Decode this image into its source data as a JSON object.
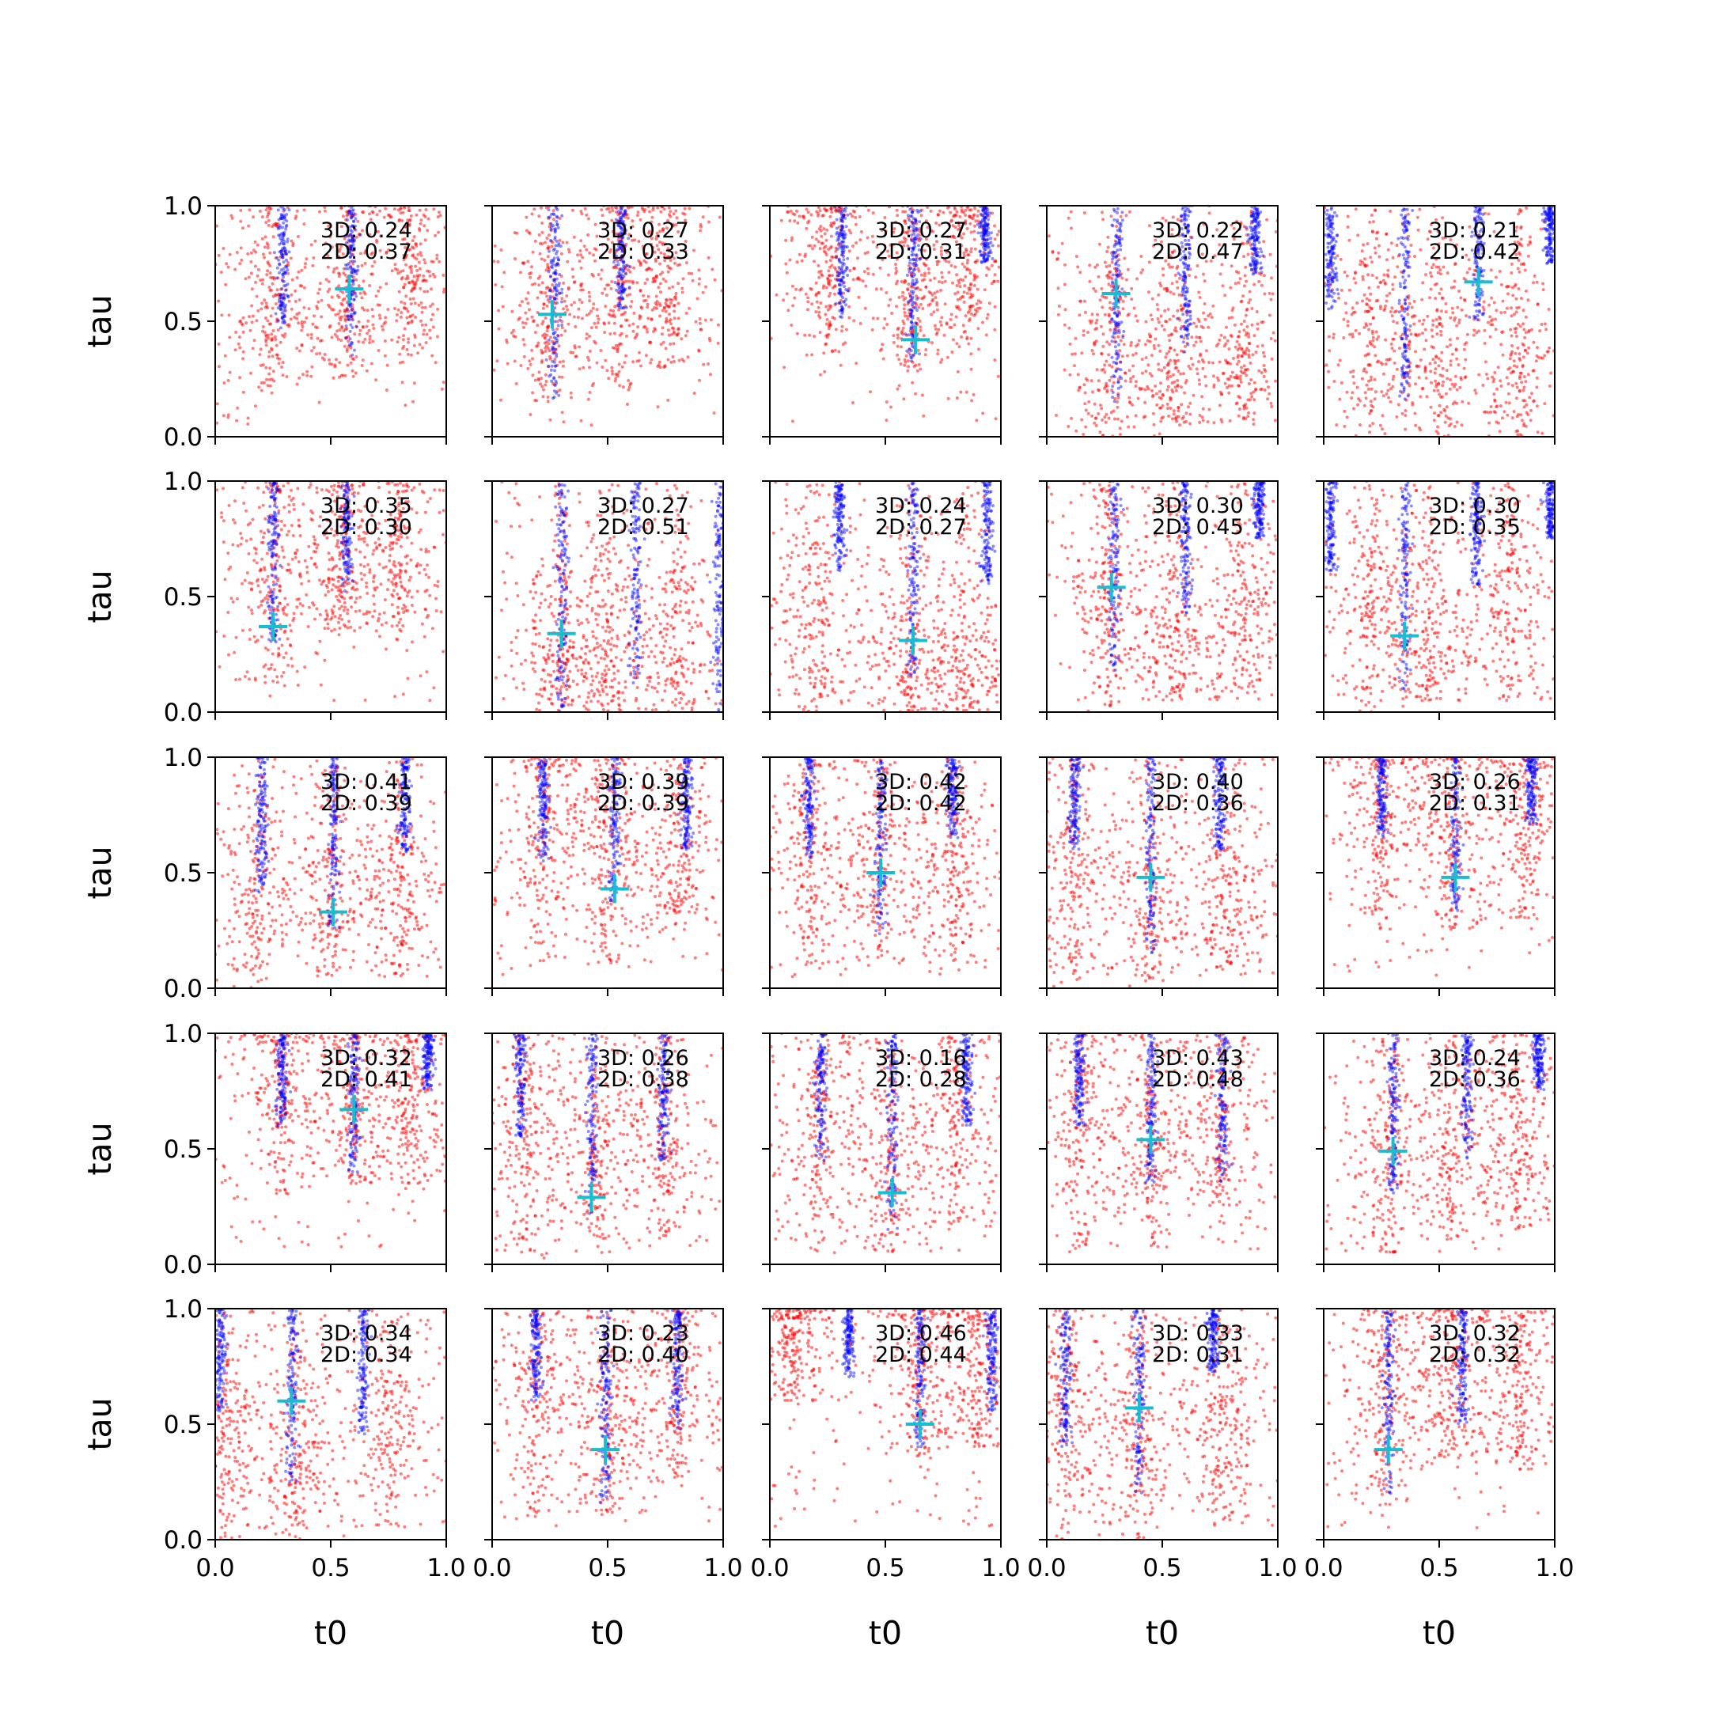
{
  "chart_data": {
    "type": "scatter",
    "grid": "5x5 subplots, shared axes",
    "xlabel": "t0",
    "ylabel": "tau",
    "xlim": [
      0,
      1
    ],
    "ylim": [
      0,
      1
    ],
    "xticks": [
      "0.0",
      "0.5",
      "1.0"
    ],
    "yticks": [
      "0.0",
      "0.5",
      "1.0"
    ],
    "colors": {
      "red_points": "#ff0000",
      "blue_points": "#0000ff",
      "marker": "#17becf",
      "frame": "#000000"
    },
    "series_markers": [
      "red scatter",
      "blue scatter",
      "cyan plus"
    ],
    "panels": [
      {
        "row": 0,
        "col": 0,
        "label_3d": "3D: 0.24",
        "label_2d": "2D: 0.37",
        "marker": [
          0.58,
          0.64
        ],
        "blue_x": [
          0.29,
          0.59
        ],
        "blue_ymin": [
          0.45,
          0.35
        ],
        "red_x": [
          0.24,
          0.57,
          0.85
        ],
        "red_ymin": [
          0.2,
          0.25,
          0.35
        ],
        "red_y_center": [
          0.6,
          0.55,
          0.75
        ]
      },
      {
        "row": 0,
        "col": 1,
        "label_3d": "3D: 0.27",
        "label_2d": "2D: 0.33",
        "marker": [
          0.26,
          0.53
        ],
        "blue_x": [
          0.27,
          0.56
        ],
        "blue_ymin": [
          0.15,
          0.55
        ],
        "red_x": [
          0.24,
          0.55,
          0.75
        ],
        "red_ymin": [
          0.15,
          0.2,
          0.3
        ],
        "red_y_center": [
          0.55,
          0.7,
          0.6
        ]
      },
      {
        "row": 0,
        "col": 2,
        "label_3d": "3D: 0.27",
        "label_2d": "2D: 0.31",
        "marker": [
          0.63,
          0.42
        ],
        "blue_x": [
          0.31,
          0.62,
          0.93
        ],
        "blue_ymin": [
          0.5,
          0.28,
          0.75
        ],
        "red_x": [
          0.25,
          0.62,
          0.85
        ],
        "red_ymin": [
          0.35,
          0.28,
          0.4
        ],
        "red_y_center": [
          0.8,
          0.6,
          0.75
        ]
      },
      {
        "row": 0,
        "col": 3,
        "label_3d": "3D: 0.22",
        "label_2d": "2D: 0.47",
        "marker": [
          0.3,
          0.62
        ],
        "blue_x": [
          0.3,
          0.6,
          0.9
        ],
        "blue_ymin": [
          0.15,
          0.35,
          0.7
        ],
        "red_x": [
          0.28,
          0.55,
          0.85
        ],
        "red_ymin": [
          0.0,
          0.05,
          0.05
        ],
        "red_y_center": [
          0.4,
          0.3,
          0.35
        ]
      },
      {
        "row": 0,
        "col": 4,
        "label_3d": "3D: 0.21",
        "label_2d": "2D: 0.42",
        "marker": [
          0.67,
          0.67
        ],
        "blue_x": [
          0.03,
          0.35,
          0.67,
          0.98
        ],
        "blue_ymin": [
          0.55,
          0.15,
          0.5,
          0.75
        ],
        "red_x": [
          0.2,
          0.5,
          0.85
        ],
        "red_ymin": [
          0.0,
          0.0,
          0.0
        ],
        "red_y_center": [
          0.45,
          0.35,
          0.35
        ]
      },
      {
        "row": 1,
        "col": 0,
        "label_3d": "3D: 0.35",
        "label_2d": "2D: 0.30",
        "marker": [
          0.25,
          0.37
        ],
        "blue_x": [
          0.25,
          0.57
        ],
        "blue_ymin": [
          0.3,
          0.52
        ],
        "red_x": [
          0.25,
          0.55,
          0.8
        ],
        "red_ymin": [
          0.12,
          0.35,
          0.35
        ],
        "red_y_center": [
          0.62,
          0.6,
          0.65
        ]
      },
      {
        "row": 1,
        "col": 1,
        "label_3d": "3D: 0.27",
        "label_2d": "2D: 0.51",
        "marker": [
          0.3,
          0.34
        ],
        "blue_x": [
          0.3,
          0.62,
          0.98
        ],
        "blue_ymin": [
          0.0,
          0.1,
          0.0
        ],
        "red_x": [
          0.3,
          0.5,
          0.8
        ],
        "red_ymin": [
          0.0,
          0.0,
          0.0
        ],
        "red_y_center": [
          0.25,
          0.3,
          0.3
        ]
      },
      {
        "row": 1,
        "col": 2,
        "label_3d": "3D: 0.24",
        "label_2d": "2D: 0.27",
        "marker": [
          0.62,
          0.31
        ],
        "blue_x": [
          0.3,
          0.62,
          0.94
        ],
        "blue_ymin": [
          0.6,
          0.15,
          0.55
        ],
        "red_x": [
          0.2,
          0.6,
          0.85
        ],
        "red_ymin": [
          0.0,
          0.0,
          0.0
        ],
        "red_y_center": [
          0.4,
          0.25,
          0.2
        ]
      },
      {
        "row": 1,
        "col": 3,
        "label_3d": "3D: 0.30",
        "label_2d": "2D: 0.45",
        "marker": [
          0.28,
          0.54
        ],
        "blue_x": [
          0.29,
          0.6,
          0.92
        ],
        "blue_ymin": [
          0.18,
          0.42,
          0.75
        ],
        "red_x": [
          0.27,
          0.55,
          0.85
        ],
        "red_ymin": [
          0.0,
          0.05,
          0.05
        ],
        "red_y_center": [
          0.5,
          0.35,
          0.35
        ]
      },
      {
        "row": 1,
        "col": 4,
        "label_3d": "3D: 0.30",
        "label_2d": "2D: 0.35",
        "marker": [
          0.35,
          0.33
        ],
        "blue_x": [
          0.03,
          0.35,
          0.66,
          0.98
        ],
        "blue_ymin": [
          0.6,
          0.1,
          0.55,
          0.75
        ],
        "red_x": [
          0.2,
          0.45,
          0.8
        ],
        "red_ymin": [
          0.0,
          0.05,
          0.05
        ],
        "red_y_center": [
          0.45,
          0.3,
          0.45
        ]
      },
      {
        "row": 2,
        "col": 0,
        "label_3d": "3D: 0.41",
        "label_2d": "2D: 0.39",
        "marker": [
          0.51,
          0.33
        ],
        "blue_x": [
          0.2,
          0.51,
          0.82
        ],
        "blue_ymin": [
          0.4,
          0.25,
          0.58
        ],
        "red_x": [
          0.18,
          0.5,
          0.8
        ],
        "red_ymin": [
          0.0,
          0.05,
          0.05
        ],
        "red_y_center": [
          0.45,
          0.45,
          0.4
        ]
      },
      {
        "row": 2,
        "col": 1,
        "label_3d": "3D: 0.39",
        "label_2d": "2D: 0.39",
        "marker": [
          0.53,
          0.43
        ],
        "blue_x": [
          0.22,
          0.53,
          0.84
        ],
        "blue_ymin": [
          0.55,
          0.35,
          0.6
        ],
        "red_x": [
          0.22,
          0.5,
          0.8
        ],
        "red_ymin": [
          0.1,
          0.1,
          0.2
        ],
        "red_y_center": [
          0.7,
          0.6,
          0.6
        ]
      },
      {
        "row": 2,
        "col": 2,
        "label_3d": "3D: 0.42",
        "label_2d": "2D: 0.42",
        "marker": [
          0.48,
          0.5
        ],
        "blue_x": [
          0.17,
          0.48,
          0.79
        ],
        "blue_ymin": [
          0.55,
          0.22,
          0.65
        ],
        "red_x": [
          0.17,
          0.48,
          0.8
        ],
        "red_ymin": [
          0.05,
          0.05,
          0.1
        ],
        "red_y_center": [
          0.55,
          0.5,
          0.5
        ]
      },
      {
        "row": 2,
        "col": 3,
        "label_3d": "3D: 0.40",
        "label_2d": "2D: 0.36",
        "marker": [
          0.45,
          0.48
        ],
        "blue_x": [
          0.12,
          0.45,
          0.75
        ],
        "blue_ymin": [
          0.6,
          0.15,
          0.6
        ],
        "red_x": [
          0.12,
          0.45,
          0.8
        ],
        "red_ymin": [
          0.0,
          0.0,
          0.05
        ],
        "red_y_center": [
          0.5,
          0.45,
          0.45
        ]
      },
      {
        "row": 2,
        "col": 4,
        "label_3d": "3D: 0.26",
        "label_2d": "2D: 0.31",
        "marker": [
          0.57,
          0.48
        ],
        "blue_x": [
          0.25,
          0.57,
          0.9
        ],
        "blue_ymin": [
          0.65,
          0.33,
          0.7
        ],
        "red_x": [
          0.25,
          0.55,
          0.88
        ],
        "red_ymin": [
          0.25,
          0.25,
          0.3
        ],
        "red_y_center": [
          0.75,
          0.7,
          0.7
        ]
      },
      {
        "row": 3,
        "col": 0,
        "label_3d": "3D: 0.32",
        "label_2d": "2D: 0.41",
        "marker": [
          0.6,
          0.67
        ],
        "blue_x": [
          0.29,
          0.6,
          0.92
        ],
        "blue_ymin": [
          0.6,
          0.4,
          0.75
        ],
        "red_x": [
          0.29,
          0.6,
          0.85
        ],
        "red_ymin": [
          0.3,
          0.35,
          0.35
        ],
        "red_y_center": [
          0.8,
          0.7,
          0.7
        ]
      },
      {
        "row": 3,
        "col": 1,
        "label_3d": "3D: 0.26",
        "label_2d": "2D: 0.38",
        "marker": [
          0.43,
          0.29
        ],
        "blue_x": [
          0.12,
          0.43,
          0.74
        ],
        "blue_ymin": [
          0.55,
          0.2,
          0.45
        ],
        "red_x": [
          0.15,
          0.45,
          0.75
        ],
        "red_ymin": [
          0.0,
          0.05,
          0.1
        ],
        "red_y_center": [
          0.55,
          0.5,
          0.55
        ]
      },
      {
        "row": 3,
        "col": 2,
        "label_3d": "3D: 0.16",
        "label_2d": "2D: 0.28",
        "marker": [
          0.53,
          0.31
        ],
        "blue_x": [
          0.22,
          0.53,
          0.85
        ],
        "blue_ymin": [
          0.45,
          0.15,
          0.6
        ],
        "red_x": [
          0.22,
          0.52,
          0.8
        ],
        "red_ymin": [
          0.05,
          0.05,
          0.15
        ],
        "red_y_center": [
          0.6,
          0.45,
          0.55
        ]
      },
      {
        "row": 3,
        "col": 3,
        "label_3d": "3D: 0.43",
        "label_2d": "2D: 0.48",
        "marker": [
          0.45,
          0.54
        ],
        "blue_x": [
          0.14,
          0.45,
          0.76
        ],
        "blue_ymin": [
          0.6,
          0.35,
          0.35
        ],
        "red_x": [
          0.14,
          0.45,
          0.75
        ],
        "red_ymin": [
          0.05,
          0.05,
          0.15
        ],
        "red_y_center": [
          0.6,
          0.55,
          0.6
        ]
      },
      {
        "row": 3,
        "col": 4,
        "label_3d": "3D: 0.24",
        "label_2d": "2D: 0.36",
        "marker": [
          0.3,
          0.49
        ],
        "blue_x": [
          0.3,
          0.62,
          0.93
        ],
        "blue_ymin": [
          0.3,
          0.45,
          0.75
        ],
        "red_x": [
          0.28,
          0.55,
          0.85
        ],
        "red_ymin": [
          0.05,
          0.1,
          0.15
        ],
        "red_y_center": [
          0.5,
          0.5,
          0.55
        ]
      },
      {
        "row": 4,
        "col": 0,
        "label_3d": "3D: 0.34",
        "label_2d": "2D: 0.34",
        "marker": [
          0.33,
          0.6
        ],
        "blue_x": [
          0.02,
          0.33,
          0.64
        ],
        "blue_ymin": [
          0.55,
          0.25,
          0.45
        ],
        "red_x": [
          0.05,
          0.35,
          0.75
        ],
        "red_ymin": [
          0.0,
          0.0,
          0.05
        ],
        "red_y_center": [
          0.45,
          0.4,
          0.5
        ]
      },
      {
        "row": 4,
        "col": 1,
        "label_3d": "3D: 0.23",
        "label_2d": "2D: 0.40",
        "marker": [
          0.49,
          0.39
        ],
        "blue_x": [
          0.19,
          0.49,
          0.8
        ],
        "blue_ymin": [
          0.6,
          0.15,
          0.45
        ],
        "red_x": [
          0.2,
          0.5,
          0.8
        ],
        "red_ymin": [
          0.1,
          0.1,
          0.25
        ],
        "red_y_center": [
          0.65,
          0.55,
          0.65
        ]
      },
      {
        "row": 4,
        "col": 2,
        "label_3d": "3D: 0.46",
        "label_2d": "2D: 0.44",
        "marker": [
          0.65,
          0.5
        ],
        "blue_x": [
          0.34,
          0.65,
          0.96
        ],
        "blue_ymin": [
          0.7,
          0.4,
          0.55
        ],
        "red_x": [
          0.1,
          0.65,
          0.9
        ],
        "red_ymin": [
          0.6,
          0.35,
          0.4
        ],
        "red_y_center": [
          0.85,
          0.7,
          0.75
        ]
      },
      {
        "row": 4,
        "col": 3,
        "label_3d": "3D: 0.33",
        "label_2d": "2D: 0.31",
        "marker": [
          0.4,
          0.57
        ],
        "blue_x": [
          0.08,
          0.4,
          0.72
        ],
        "blue_ymin": [
          0.4,
          0.2,
          0.72
        ],
        "red_x": [
          0.08,
          0.4,
          0.75
        ],
        "red_ymin": [
          0.0,
          0.0,
          0.05
        ],
        "red_y_center": [
          0.55,
          0.45,
          0.45
        ]
      },
      {
        "row": 4,
        "col": 4,
        "label_3d": "3D: 0.32",
        "label_2d": "2D: 0.32",
        "marker": [
          0.28,
          0.39
        ],
        "blue_x": [
          0.28,
          0.6
        ],
        "blue_ymin": [
          0.2,
          0.5
        ],
        "red_x": [
          0.27,
          0.55,
          0.85
        ],
        "red_ymin": [
          0.15,
          0.35,
          0.3
        ],
        "red_y_center": [
          0.6,
          0.7,
          0.65
        ]
      }
    ]
  }
}
